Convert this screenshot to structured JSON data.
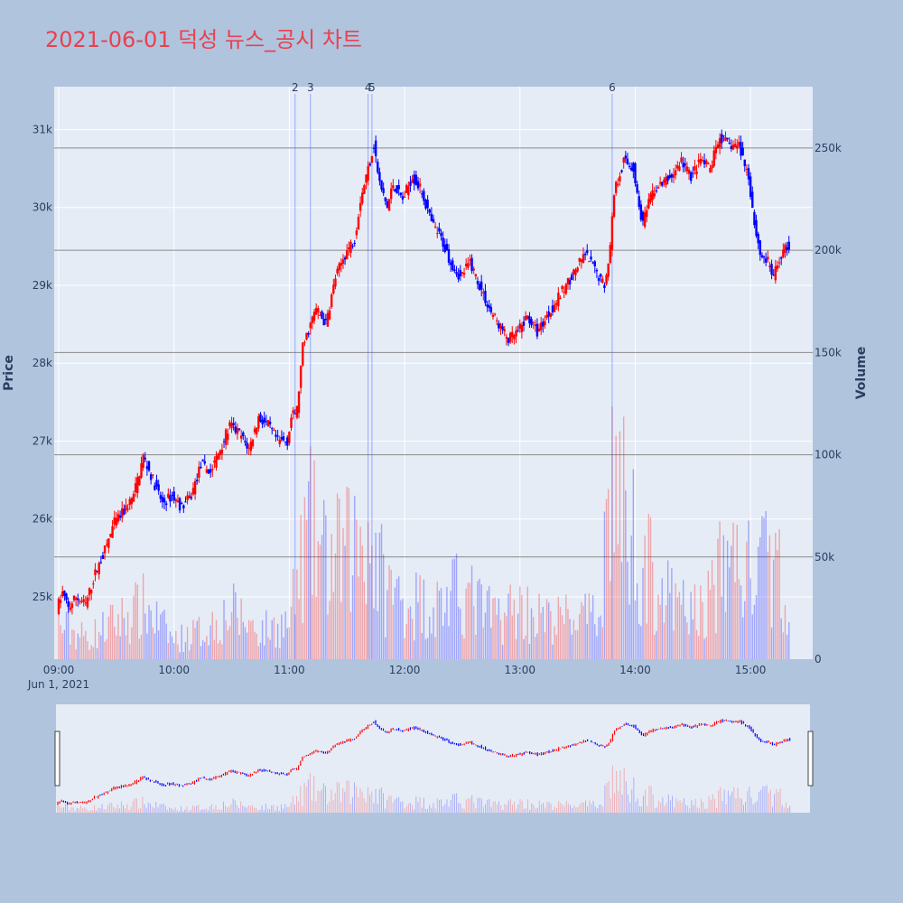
{
  "title": "2021-06-01 덕성 뉴스_공시 차트",
  "chart_data": {
    "type": "candlestick",
    "title": "2021-06-01 덕성 뉴스_공시 차트",
    "xlabel": "",
    "ylabel": "Price",
    "y2label": "Volume",
    "x_ticks": [
      "09:00",
      "10:00",
      "11:00",
      "12:00",
      "13:00",
      "14:00",
      "15:00"
    ],
    "x_date_label": "Jun 1, 2021",
    "y_ticks": [
      "25k",
      "26k",
      "27k",
      "28k",
      "29k",
      "30k",
      "31k"
    ],
    "y_tick_values": [
      25000,
      26000,
      27000,
      28000,
      29000,
      30000,
      31000
    ],
    "y2_ticks": [
      "0",
      "50k",
      "100k",
      "150k",
      "200k",
      "250k"
    ],
    "y2_tick_values": [
      0,
      50000,
      100000,
      150000,
      200000,
      250000
    ],
    "ylim": [
      24200,
      31550
    ],
    "y2lim": [
      0,
      280000
    ],
    "time_range": [
      "09:00",
      "15:30"
    ],
    "up_color": "#ff0000",
    "down_color": "#0000ff",
    "news_markers": [
      {
        "label": "2",
        "time": "11:03"
      },
      {
        "label": "3",
        "time": "11:11"
      },
      {
        "label": "4",
        "time": "11:41"
      },
      {
        "label": "5",
        "time": "11:43"
      },
      {
        "label": "6",
        "time": "13:48"
      }
    ],
    "price_path": [
      [
        "09:00",
        24850
      ],
      [
        "09:03",
        25050
      ],
      [
        "09:06",
        24850
      ],
      [
        "09:10",
        25000
      ],
      [
        "09:15",
        24900
      ],
      [
        "09:20",
        25300
      ],
      [
        "09:25",
        25600
      ],
      [
        "09:30",
        25950
      ],
      [
        "09:35",
        26100
      ],
      [
        "09:40",
        26300
      ],
      [
        "09:45",
        26800
      ],
      [
        "09:50",
        26500
      ],
      [
        "09:55",
        26200
      ],
      [
        "10:00",
        26300
      ],
      [
        "10:05",
        26150
      ],
      [
        "10:10",
        26300
      ],
      [
        "10:15",
        26700
      ],
      [
        "10:20",
        26600
      ],
      [
        "10:25",
        26900
      ],
      [
        "10:30",
        27200
      ],
      [
        "10:35",
        27100
      ],
      [
        "10:40",
        26900
      ],
      [
        "10:45",
        27300
      ],
      [
        "10:50",
        27200
      ],
      [
        "10:55",
        27000
      ],
      [
        "11:00",
        27000
      ],
      [
        "11:02",
        27300
      ],
      [
        "11:05",
        27400
      ],
      [
        "11:08",
        28200
      ],
      [
        "11:12",
        28500
      ],
      [
        "11:15",
        28700
      ],
      [
        "11:20",
        28500
      ],
      [
        "11:25",
        29100
      ],
      [
        "11:30",
        29400
      ],
      [
        "11:35",
        29600
      ],
      [
        "11:38",
        30100
      ],
      [
        "11:41",
        30400
      ],
      [
        "11:45",
        30800
      ],
      [
        "11:48",
        30300
      ],
      [
        "11:52",
        30000
      ],
      [
        "11:55",
        30300
      ],
      [
        "12:00",
        30100
      ],
      [
        "12:05",
        30400
      ],
      [
        "12:10",
        30200
      ],
      [
        "12:15",
        29800
      ],
      [
        "12:20",
        29600
      ],
      [
        "12:25",
        29300
      ],
      [
        "12:30",
        29100
      ],
      [
        "12:35",
        29300
      ],
      [
        "12:40",
        29000
      ],
      [
        "12:45",
        28700
      ],
      [
        "12:50",
        28500
      ],
      [
        "12:55",
        28300
      ],
      [
        "13:00",
        28400
      ],
      [
        "13:05",
        28600
      ],
      [
        "13:10",
        28400
      ],
      [
        "13:15",
        28600
      ],
      [
        "13:20",
        28800
      ],
      [
        "13:25",
        29000
      ],
      [
        "13:30",
        29200
      ],
      [
        "13:35",
        29400
      ],
      [
        "13:40",
        29200
      ],
      [
        "13:45",
        29000
      ],
      [
        "13:48",
        29500
      ],
      [
        "13:50",
        30200
      ],
      [
        "13:55",
        30600
      ],
      [
        "14:00",
        30500
      ],
      [
        "14:03",
        30000
      ],
      [
        "14:05",
        29800
      ],
      [
        "14:10",
        30200
      ],
      [
        "14:15",
        30300
      ],
      [
        "14:20",
        30400
      ],
      [
        "14:25",
        30600
      ],
      [
        "14:30",
        30400
      ],
      [
        "14:35",
        30600
      ],
      [
        "14:40",
        30500
      ],
      [
        "14:45",
        30900
      ],
      [
        "14:50",
        30800
      ],
      [
        "14:55",
        30800
      ],
      [
        "15:00",
        30400
      ],
      [
        "15:03",
        29800
      ],
      [
        "15:06",
        29400
      ],
      [
        "15:10",
        29300
      ],
      [
        "15:13",
        29100
      ],
      [
        "15:17",
        29400
      ],
      [
        "15:20",
        29500
      ]
    ],
    "volume_profile": [
      [
        "09:00",
        14000
      ],
      [
        "09:15",
        9000
      ],
      [
        "09:30",
        16000
      ],
      [
        "09:45",
        22000
      ],
      [
        "10:00",
        8000
      ],
      [
        "10:15",
        12000
      ],
      [
        "10:30",
        20000
      ],
      [
        "10:45",
        12000
      ],
      [
        "11:00",
        15000
      ],
      [
        "11:10",
        55000
      ],
      [
        "11:20",
        40000
      ],
      [
        "11:30",
        45000
      ],
      [
        "11:40",
        55000
      ],
      [
        "11:50",
        30000
      ],
      [
        "12:00",
        25000
      ],
      [
        "12:15",
        22000
      ],
      [
        "12:30",
        28000
      ],
      [
        "12:45",
        18000
      ],
      [
        "13:00",
        22000
      ],
      [
        "13:15",
        16000
      ],
      [
        "13:30",
        18000
      ],
      [
        "13:40",
        16000
      ],
      [
        "13:48",
        80000
      ],
      [
        "13:55",
        60000
      ],
      [
        "14:05",
        40000
      ],
      [
        "14:20",
        22000
      ],
      [
        "14:35",
        20000
      ],
      [
        "14:50",
        45000
      ],
      [
        "15:00",
        35000
      ],
      [
        "15:10",
        40000
      ],
      [
        "15:20",
        30000
      ],
      [
        "15:29",
        30000
      ]
    ]
  }
}
